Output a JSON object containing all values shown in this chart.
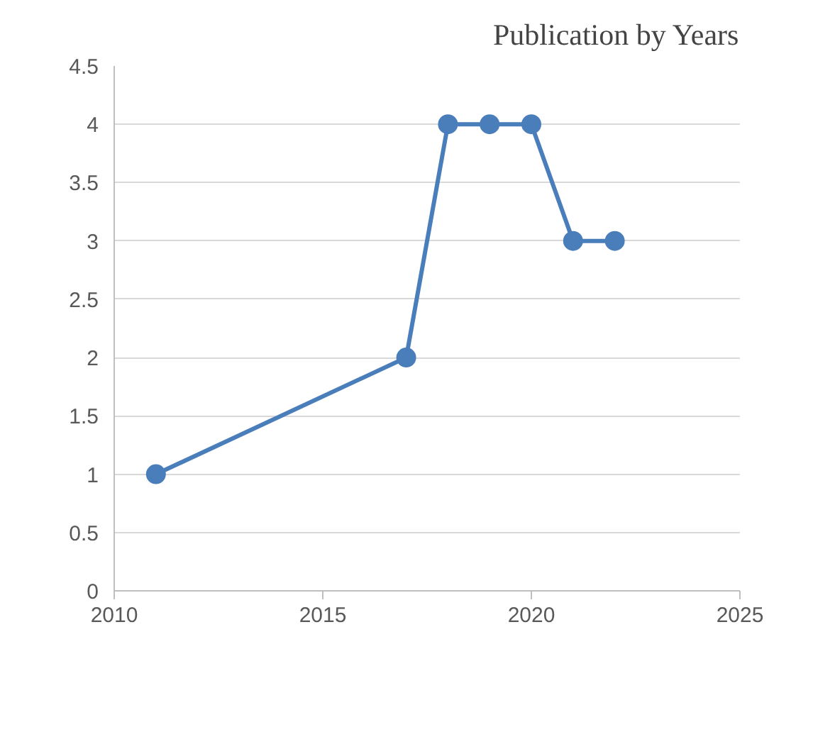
{
  "chart_data": {
    "type": "line",
    "title": "Publication by Years",
    "x": [
      2011,
      2017,
      2018,
      2019,
      2020,
      2021,
      2022
    ],
    "series": [
      {
        "color": "#4a7ebb",
        "values": [
          1,
          2,
          4,
          4,
          4,
          3,
          3
        ]
      }
    ],
    "xlim": [
      2010,
      2025
    ],
    "xticks": [
      2010,
      2015,
      2020,
      2025
    ],
    "ylim": [
      0,
      4.5
    ],
    "yticks": [
      0,
      0.5,
      1,
      1.5,
      2,
      2.5,
      3,
      3.5,
      4,
      4.5
    ],
    "grid": "y",
    "marker": "circle",
    "line_style": "solid"
  }
}
